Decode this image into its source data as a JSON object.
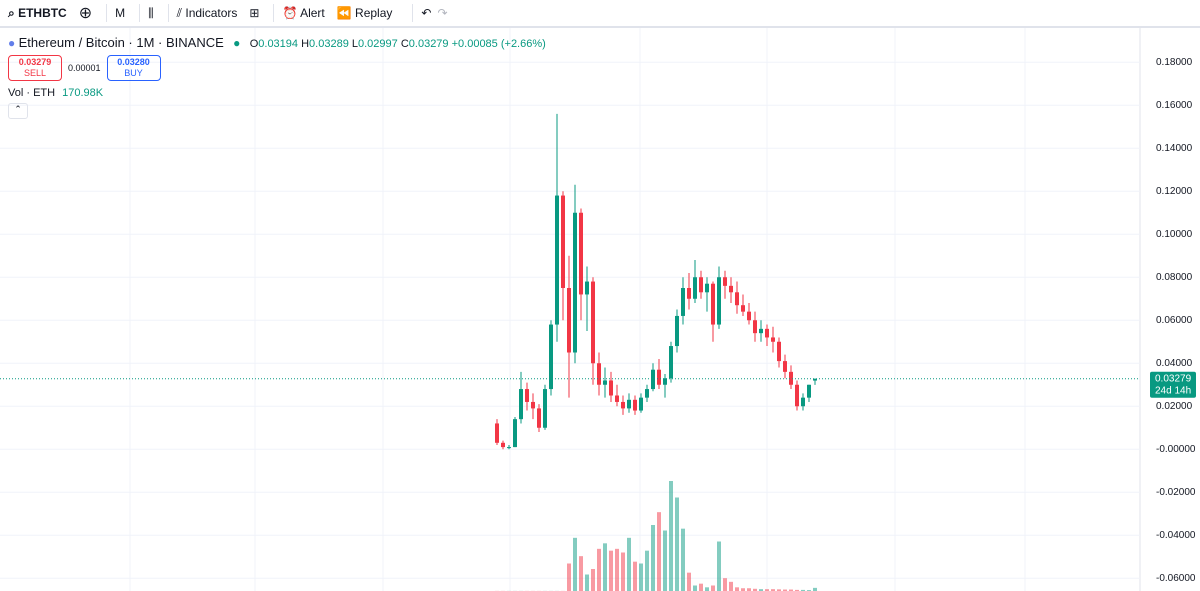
{
  "toolbar": {
    "symbol": "ETHBTC",
    "interval": "M",
    "indicators": "Indicators",
    "alert": "Alert",
    "replay": "Replay"
  },
  "legend": {
    "title": "Ethereum / Bitcoin · 1M · BINANCE",
    "o": "O",
    "h": "H",
    "l": "L",
    "c": "C",
    "change": "+0.00085 (+2.66%)",
    "sell_price": "0.03279",
    "sell": "SELL",
    "spread": "0.00001",
    "buy_price": "0.03280",
    "buy": "BUY",
    "vol_name": "Vol · ETH",
    "vol_value": "170.98K",
    "countdown": "24d 14h"
  },
  "chart_data": {
    "type": "candlestick",
    "up_color": "#089981",
    "down_color": "#f23645",
    "ylim": [
      -0.065,
      0.195
    ],
    "yticks": [
      {
        "value": 0.18,
        "label": "0.18000"
      },
      {
        "value": 0.16,
        "label": "0.16000"
      },
      {
        "value": 0.14,
        "label": "0.14000"
      },
      {
        "value": 0.12,
        "label": "0.12000"
      },
      {
        "value": 0.1,
        "label": "0.10000"
      },
      {
        "value": 0.08,
        "label": "0.08000"
      },
      {
        "value": 0.06,
        "label": "0.06000"
      },
      {
        "value": 0.04,
        "label": "0.04000"
      },
      {
        "value": 0.02,
        "label": "0.02000"
      },
      {
        "value": 0,
        "label": "-0.00000"
      },
      {
        "value": -0.02,
        "label": "-0.02000"
      },
      {
        "value": -0.04,
        "label": "-0.04000"
      },
      {
        "value": -0.06,
        "label": "-0.06000"
      }
    ],
    "candles": [
      [
        0.012,
        0.014,
        0.002,
        0.003
      ],
      [
        0.003,
        0.004,
        0.0,
        0.001
      ],
      [
        0.001,
        0.002,
        0.0,
        0.001
      ],
      [
        0.001,
        0.015,
        0.001,
        0.014
      ],
      [
        0.014,
        0.036,
        0.012,
        0.028
      ],
      [
        0.028,
        0.031,
        0.018,
        0.022
      ],
      [
        0.022,
        0.026,
        0.014,
        0.019
      ],
      [
        0.019,
        0.021,
        0.008,
        0.01
      ],
      [
        0.01,
        0.03,
        0.009,
        0.028
      ],
      [
        0.028,
        0.06,
        0.025,
        0.058
      ],
      [
        0.058,
        0.156,
        0.05,
        0.118
      ],
      [
        0.118,
        0.12,
        0.06,
        0.075
      ],
      [
        0.075,
        0.09,
        0.024,
        0.045
      ],
      [
        0.045,
        0.123,
        0.04,
        0.11
      ],
      [
        0.11,
        0.112,
        0.06,
        0.072
      ],
      [
        0.072,
        0.085,
        0.055,
        0.078
      ],
      [
        0.078,
        0.08,
        0.03,
        0.04
      ],
      [
        0.04,
        0.045,
        0.025,
        0.03
      ],
      [
        0.03,
        0.038,
        0.024,
        0.032
      ],
      [
        0.032,
        0.036,
        0.022,
        0.025
      ],
      [
        0.025,
        0.03,
        0.02,
        0.022
      ],
      [
        0.022,
        0.025,
        0.016,
        0.019
      ],
      [
        0.019,
        0.026,
        0.017,
        0.023
      ],
      [
        0.023,
        0.025,
        0.016,
        0.018
      ],
      [
        0.018,
        0.026,
        0.017,
        0.024
      ],
      [
        0.024,
        0.03,
        0.022,
        0.028
      ],
      [
        0.028,
        0.04,
        0.027,
        0.037
      ],
      [
        0.037,
        0.042,
        0.028,
        0.03
      ],
      [
        0.03,
        0.035,
        0.024,
        0.033
      ],
      [
        0.033,
        0.05,
        0.031,
        0.048
      ],
      [
        0.048,
        0.065,
        0.045,
        0.062
      ],
      [
        0.062,
        0.08,
        0.058,
        0.075
      ],
      [
        0.075,
        0.082,
        0.065,
        0.07
      ],
      [
        0.07,
        0.088,
        0.068,
        0.08
      ],
      [
        0.08,
        0.083,
        0.07,
        0.073
      ],
      [
        0.073,
        0.08,
        0.064,
        0.077
      ],
      [
        0.077,
        0.078,
        0.05,
        0.058
      ],
      [
        0.058,
        0.085,
        0.056,
        0.08
      ],
      [
        0.08,
        0.083,
        0.07,
        0.076
      ],
      [
        0.076,
        0.08,
        0.068,
        0.073
      ],
      [
        0.073,
        0.078,
        0.063,
        0.067
      ],
      [
        0.067,
        0.072,
        0.062,
        0.064
      ],
      [
        0.064,
        0.068,
        0.058,
        0.06
      ],
      [
        0.06,
        0.064,
        0.05,
        0.054
      ],
      [
        0.054,
        0.06,
        0.05,
        0.056
      ],
      [
        0.056,
        0.058,
        0.048,
        0.052
      ],
      [
        0.052,
        0.057,
        0.045,
        0.05
      ],
      [
        0.05,
        0.052,
        0.038,
        0.041
      ],
      [
        0.041,
        0.044,
        0.033,
        0.036
      ],
      [
        0.036,
        0.039,
        0.028,
        0.03
      ],
      [
        0.03,
        0.032,
        0.018,
        0.02
      ],
      [
        0.02,
        0.026,
        0.018,
        0.024
      ],
      [
        0.024,
        0.03,
        0.022,
        0.03
      ],
      [
        0.03194,
        0.03289,
        0.02997,
        0.03279
      ]
    ],
    "volume": [
      5,
      5,
      5,
      5,
      5,
      5,
      5,
      5,
      5,
      5,
      5,
      5,
      1500,
      2900,
      1900,
      900,
      1200,
      2300,
      2600,
      2200,
      2300,
      2100,
      2900,
      1600,
      1500,
      2200,
      3600,
      4300,
      3300,
      6000,
      5100,
      3400,
      1000,
      300,
      400,
      200,
      300,
      2700,
      700,
      500,
      200,
      150,
      150,
      120,
      100,
      100,
      100,
      90,
      80,
      80,
      60,
      60,
      50,
      170.98
    ]
  }
}
